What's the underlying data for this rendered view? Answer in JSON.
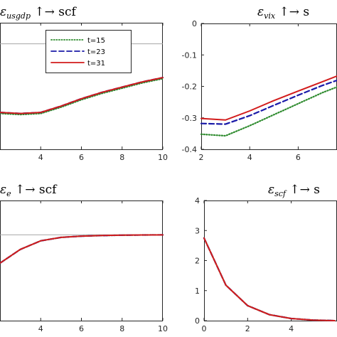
{
  "chart_data": [
    {
      "type": "line",
      "title": "ε_usgdp ↑→ scf",
      "title_main": "ε",
      "title_sub": "usgdp",
      "title_rest": " ↑→ scf",
      "x": [
        2,
        3,
        4,
        5,
        6,
        7,
        8,
        9,
        10
      ],
      "xlim": [
        2,
        10
      ],
      "xticks": [
        "4",
        "6",
        "8",
        "10"
      ],
      "ylim": [
        -1,
        0.2
      ],
      "yticks": [],
      "zero_line": 0,
      "grid": false,
      "legend_position": "top",
      "series": [
        {
          "name": "t=15",
          "style": "dotted",
          "color": "#2e8b2e",
          "values": [
            -0.66,
            -0.67,
            -0.66,
            -0.6,
            -0.53,
            -0.47,
            -0.42,
            -0.37,
            -0.33
          ]
        },
        {
          "name": "t=23",
          "style": "dashed",
          "color": "#1a1aa8",
          "values": [
            -0.65,
            -0.66,
            -0.65,
            -0.59,
            -0.52,
            -0.46,
            -0.41,
            -0.36,
            -0.32
          ]
        },
        {
          "name": "t=31",
          "style": "solid",
          "color": "#d21c1c",
          "values": [
            -0.65,
            -0.66,
            -0.65,
            -0.59,
            -0.52,
            -0.46,
            -0.41,
            -0.36,
            -0.32
          ]
        }
      ]
    },
    {
      "type": "line",
      "title": "ε_vix ↑→ s",
      "title_main": "ε",
      "title_sub": "vix",
      "title_rest": " ↑→ s",
      "x": [
        2,
        3,
        4,
        5,
        6,
        7,
        8
      ],
      "xlim": [
        2,
        7.6
      ],
      "xticks": [
        "2",
        "4",
        "6"
      ],
      "ylim": [
        -0.4,
        0
      ],
      "yticks": [
        "0",
        "-0.1",
        "-0.2",
        "-0.3",
        "-0.4"
      ],
      "grid": false,
      "series": [
        {
          "name": "t=15",
          "style": "dotted",
          "color": "#2e8b2e",
          "values": [
            -0.352,
            -0.357,
            -0.325,
            -0.29,
            -0.255,
            -0.22,
            -0.19
          ]
        },
        {
          "name": "t=23",
          "style": "dashed",
          "color": "#1a1aa8",
          "values": [
            -0.318,
            -0.32,
            -0.293,
            -0.26,
            -0.228,
            -0.197,
            -0.17
          ]
        },
        {
          "name": "t=31",
          "style": "solid",
          "color": "#d21c1c",
          "values": [
            -0.302,
            -0.307,
            -0.278,
            -0.245,
            -0.215,
            -0.185,
            -0.155
          ]
        }
      ]
    },
    {
      "type": "line",
      "title": "ε_e ↑→ scf",
      "title_main": "ε",
      "title_sub": "e",
      "title_rest": " ↑→ scf",
      "x": [
        2,
        3,
        4,
        5,
        6,
        7,
        8,
        9,
        10
      ],
      "xlim": [
        2,
        10
      ],
      "xticks": [
        "4",
        "6",
        "8",
        "10"
      ],
      "ylim": [
        -1,
        0.4
      ],
      "yticks": [],
      "zero_line": 0,
      "grid": false,
      "series": [
        {
          "name": "t=15",
          "style": "dotted",
          "color": "#2e8b2e",
          "values": [
            -0.33,
            -0.17,
            -0.07,
            -0.03,
            -0.015,
            -0.008,
            -0.004,
            -0.002,
            -0.001
          ]
        },
        {
          "name": "t=23",
          "style": "dashed",
          "color": "#1a1aa8",
          "values": [
            -0.33,
            -0.17,
            -0.07,
            -0.03,
            -0.015,
            -0.008,
            -0.004,
            -0.002,
            -0.001
          ]
        },
        {
          "name": "t=31",
          "style": "solid",
          "color": "#d21c1c",
          "values": [
            -0.33,
            -0.17,
            -0.07,
            -0.03,
            -0.015,
            -0.008,
            -0.004,
            -0.002,
            -0.001
          ]
        }
      ]
    },
    {
      "type": "line",
      "title": "ε_scf ↑→ s",
      "title_main": "ε",
      "title_sub": "scf",
      "title_rest": " ↑→ s",
      "x": [
        0,
        1,
        2,
        3,
        4,
        5,
        6
      ],
      "xlim": [
        0,
        6.1
      ],
      "xticks": [
        "0",
        "2",
        "4"
      ],
      "ylim": [
        0,
        4
      ],
      "yticks": [
        "4",
        "3",
        "2",
        "1",
        "0"
      ],
      "grid": false,
      "series": [
        {
          "name": "t=15",
          "style": "dotted",
          "color": "#2e8b2e",
          "values": [
            2.75,
            1.18,
            0.5,
            0.2,
            0.07,
            0.02,
            0.0
          ]
        },
        {
          "name": "t=23",
          "style": "dashed",
          "color": "#1a1aa8",
          "values": [
            2.75,
            1.18,
            0.5,
            0.2,
            0.07,
            0.02,
            0.0
          ]
        },
        {
          "name": "t=31",
          "style": "solid",
          "color": "#d21c1c",
          "values": [
            2.75,
            1.18,
            0.5,
            0.2,
            0.07,
            0.02,
            0.0
          ]
        }
      ]
    }
  ]
}
